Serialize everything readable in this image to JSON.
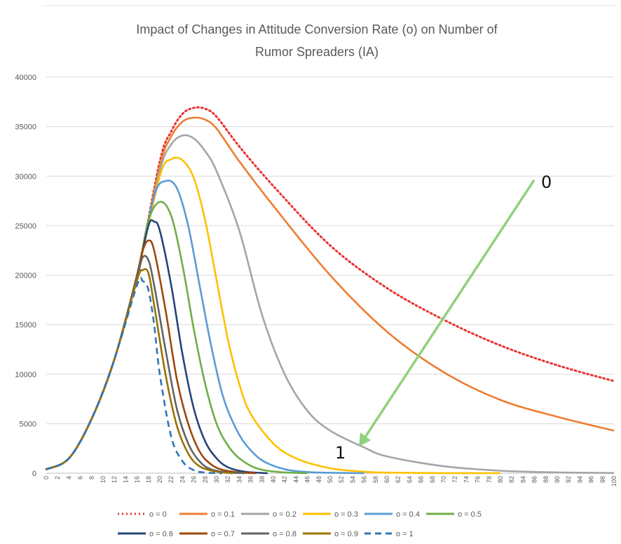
{
  "chart_data": {
    "type": "line",
    "title_lines": [
      "Impact of Changes in Attitude Conversion Rate (o) on Number of",
      "Rumor Spreaders (IA)"
    ],
    "xlabel": "",
    "ylabel": "",
    "xlim": [
      0,
      100
    ],
    "ylim": [
      0,
      40000
    ],
    "y_ticks": [
      0,
      5000,
      10000,
      15000,
      20000,
      25000,
      30000,
      35000,
      40000
    ],
    "x_ticks": [
      0,
      2,
      4,
      6,
      8,
      10,
      12,
      14,
      16,
      18,
      20,
      22,
      24,
      26,
      28,
      30,
      32,
      34,
      36,
      38,
      40,
      42,
      44,
      46,
      48,
      50,
      52,
      54,
      56,
      58,
      60,
      62,
      64,
      66,
      68,
      70,
      72,
      74,
      76,
      78,
      80,
      82,
      84,
      86,
      88,
      90,
      92,
      94,
      96,
      98,
      100
    ],
    "grid": true,
    "legend_position": "bottom",
    "series": [
      {
        "name": "o = 0",
        "color": "#e8332f",
        "dash": "dotted",
        "x": [
          0,
          4,
          8,
          12,
          16,
          20,
          22,
          24,
          26,
          28,
          30,
          34,
          40,
          50,
          60,
          70,
          80,
          90,
          100
        ],
        "y": [
          400,
          1500,
          5500,
          11500,
          20000,
          31500,
          34500,
          36300,
          36900,
          36800,
          36000,
          33000,
          29000,
          23000,
          18700,
          15500,
          12900,
          10900,
          9300
        ]
      },
      {
        "name": "o = 0.1",
        "color": "#ed7d31",
        "dash": "solid",
        "x": [
          0,
          4,
          8,
          12,
          16,
          20,
          22,
          24,
          26,
          28,
          30,
          34,
          40,
          50,
          60,
          70,
          80,
          90,
          100
        ],
        "y": [
          400,
          1500,
          5500,
          11500,
          20000,
          31000,
          34000,
          35500,
          35900,
          35700,
          34800,
          31500,
          27000,
          20000,
          14300,
          10200,
          7400,
          5700,
          4300
        ]
      },
      {
        "name": "o = 0.2",
        "color": "#a5a5a5",
        "dash": "solid",
        "x": [
          0,
          4,
          8,
          12,
          16,
          20,
          22,
          24,
          26,
          28,
          30,
          34,
          38,
          42,
          46,
          50,
          56,
          60,
          70,
          80,
          90,
          100
        ],
        "y": [
          400,
          1500,
          5500,
          11500,
          20000,
          30500,
          33200,
          34100,
          33800,
          32500,
          30500,
          24500,
          16000,
          10000,
          6300,
          4300,
          2600,
          1700,
          700,
          250,
          80,
          20
        ]
      },
      {
        "name": "o = 0.3",
        "color": "#ffc000",
        "dash": "solid",
        "x": [
          0,
          4,
          8,
          12,
          16,
          20,
          22,
          24,
          26,
          28,
          30,
          32,
          34,
          36,
          40,
          44,
          50,
          56,
          60,
          70,
          80
        ],
        "y": [
          400,
          1500,
          5500,
          11500,
          20000,
          30000,
          31700,
          31600,
          29800,
          25500,
          19500,
          13500,
          9000,
          6000,
          3000,
          1500,
          500,
          150,
          60,
          10,
          0
        ]
      },
      {
        "name": "o = 0.4",
        "color": "#5b9bd5",
        "dash": "solid",
        "x": [
          0,
          4,
          8,
          12,
          16,
          19,
          21,
          23,
          25,
          27,
          29,
          31,
          33,
          35,
          38,
          42,
          46,
          50,
          56
        ],
        "y": [
          400,
          1500,
          5500,
          11500,
          20000,
          28000,
          29500,
          28800,
          25000,
          19000,
          13000,
          8000,
          5000,
          3000,
          1300,
          400,
          120,
          40,
          0
        ]
      },
      {
        "name": "o = 0.5",
        "color": "#70ad47",
        "dash": "solid",
        "x": [
          0,
          4,
          8,
          12,
          16,
          18,
          20,
          22,
          24,
          26,
          28,
          30,
          32,
          34,
          37,
          41,
          46
        ],
        "y": [
          400,
          1500,
          5500,
          11500,
          20000,
          25500,
          27400,
          26000,
          21000,
          14500,
          9000,
          5000,
          2800,
          1500,
          500,
          120,
          0
        ]
      },
      {
        "name": "o = 0.6",
        "color": "#264478",
        "dash": "solid",
        "x": [
          0,
          4,
          8,
          12,
          16,
          18,
          19,
          20,
          22,
          24,
          26,
          28,
          30,
          32,
          35,
          39
        ],
        "y": [
          400,
          1500,
          5500,
          11500,
          20000,
          25000,
          25400,
          24500,
          19000,
          12000,
          6500,
          3200,
          1500,
          600,
          150,
          0
        ]
      },
      {
        "name": "o = 0.7",
        "color": "#9e480e",
        "dash": "solid",
        "x": [
          0,
          4,
          8,
          12,
          16,
          17,
          18,
          19,
          21,
          23,
          25,
          27,
          29,
          31,
          34,
          37
        ],
        "y": [
          400,
          1500,
          5500,
          11500,
          20000,
          22500,
          23500,
          22500,
          16500,
          9500,
          5000,
          2200,
          900,
          350,
          80,
          0
        ]
      },
      {
        "name": "o = 0.8",
        "color": "#636363",
        "dash": "solid",
        "x": [
          0,
          4,
          8,
          12,
          16,
          17,
          18,
          19,
          21,
          23,
          25,
          27,
          29,
          32,
          35
        ],
        "y": [
          400,
          1500,
          5500,
          11500,
          19800,
          21800,
          21500,
          19000,
          12500,
          6500,
          3000,
          1200,
          400,
          80,
          0
        ]
      },
      {
        "name": "o = 0.9",
        "color": "#997300",
        "dash": "solid",
        "x": [
          0,
          4,
          8,
          12,
          16,
          17,
          18,
          19,
          21,
          23,
          25,
          27,
          30,
          33
        ],
        "y": [
          400,
          1500,
          5500,
          11500,
          19500,
          20500,
          20200,
          17000,
          10000,
          4800,
          2000,
          700,
          150,
          0
        ]
      },
      {
        "name": "o = 1",
        "color": "#2e75b6",
        "dash": "dashed",
        "x": [
          0,
          4,
          8,
          12,
          16,
          17,
          18,
          19,
          20,
          22,
          24,
          26,
          28,
          31
        ],
        "y": [
          400,
          1500,
          5500,
          11500,
          19000,
          19400,
          18500,
          15000,
          10000,
          3700,
          1200,
          300,
          60,
          0
        ]
      }
    ],
    "annotations": [
      {
        "text": "0"
      },
      {
        "text": "1"
      }
    ]
  }
}
